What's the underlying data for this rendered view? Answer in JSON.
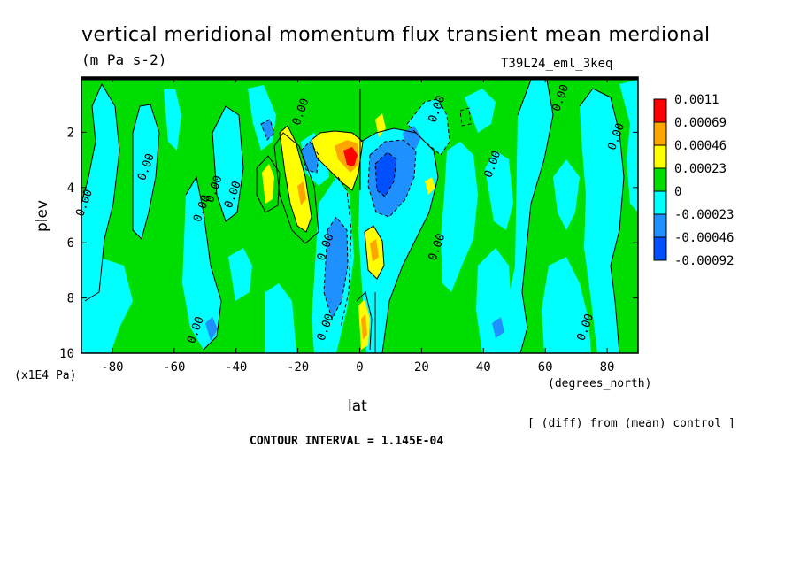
{
  "header": {
    "title": "vertical meridional momentum flux transient mean merdional",
    "units": "(m Pa s-2)",
    "run_id": "T39L24_eml_3keq"
  },
  "footer": {
    "diff_note": "[ (diff) from (mean) control ]",
    "contour_interval": "CONTOUR INTERVAL = 1.145E-04"
  },
  "chart_data": {
    "type": "heatmap",
    "title": "vertical meridional momentum flux transient mean merdional",
    "xlabel": "lat",
    "x_units": "(degrees_north)",
    "ylabel": "plev",
    "y_units": "(x1E4 Pa)",
    "xlim": [
      -90,
      90
    ],
    "ylim": [
      10,
      0
    ],
    "x_ticks": [
      "-80",
      "-60",
      "-40",
      "-20",
      "0",
      "20",
      "40",
      "60",
      "80"
    ],
    "x_tick_values": [
      -80,
      -60,
      -40,
      -20,
      0,
      20,
      40,
      60,
      80
    ],
    "y_ticks": [
      "2",
      "4",
      "6",
      "8",
      "10"
    ],
    "y_tick_values": [
      2,
      4,
      6,
      8,
      10
    ],
    "contour_labels": [
      {
        "text": "0.00",
        "lat": -88,
        "plev": 4.6
      },
      {
        "text": "0.00",
        "lat": -52,
        "plev": 9.2
      },
      {
        "text": "0.00",
        "lat": -50,
        "plev": 4.8
      },
      {
        "text": "0.00",
        "lat": -46,
        "plev": 4.1
      },
      {
        "text": "0.00",
        "lat": -40,
        "plev": 4.3
      },
      {
        "text": "0.00",
        "lat": -68,
        "plev": 3.3
      },
      {
        "text": "0.00",
        "lat": -18,
        "plev": 1.3
      },
      {
        "text": "0.00",
        "lat": -10,
        "plev": 6.2
      },
      {
        "text": "0.00",
        "lat": -10,
        "plev": 9.1
      },
      {
        "text": "0.00",
        "lat": 26,
        "plev": 1.2
      },
      {
        "text": "0.00",
        "lat": 26,
        "plev": 6.2
      },
      {
        "text": "0.00",
        "lat": 44,
        "plev": 3.2
      },
      {
        "text": "0.00",
        "lat": 66,
        "plev": 0.8
      },
      {
        "text": "0.00",
        "lat": 84,
        "plev": 2.2
      },
      {
        "text": "0.00",
        "lat": 74,
        "plev": 9.1
      }
    ],
    "legend": {
      "placement": "right",
      "levels": [
        "0.0011",
        "0.00069",
        "0.00046",
        "0.00023",
        "0",
        "-0.00023",
        "-0.00046",
        "-0.00092"
      ],
      "colors": [
        "#ff0000",
        "#ffa500",
        "#ffff00",
        "#00dd00",
        "#00ffff",
        "#1e90ff",
        "#0050ff"
      ]
    },
    "colors": {
      "background_positive_small": "#00dd00",
      "negative_small": "#00ffff",
      "negative_mid": "#1e90ff",
      "negative_large": "#0050ff",
      "positive_mid": "#ffff00",
      "positive_large": "#ffa500",
      "positive_max": "#ff0000"
    }
  }
}
